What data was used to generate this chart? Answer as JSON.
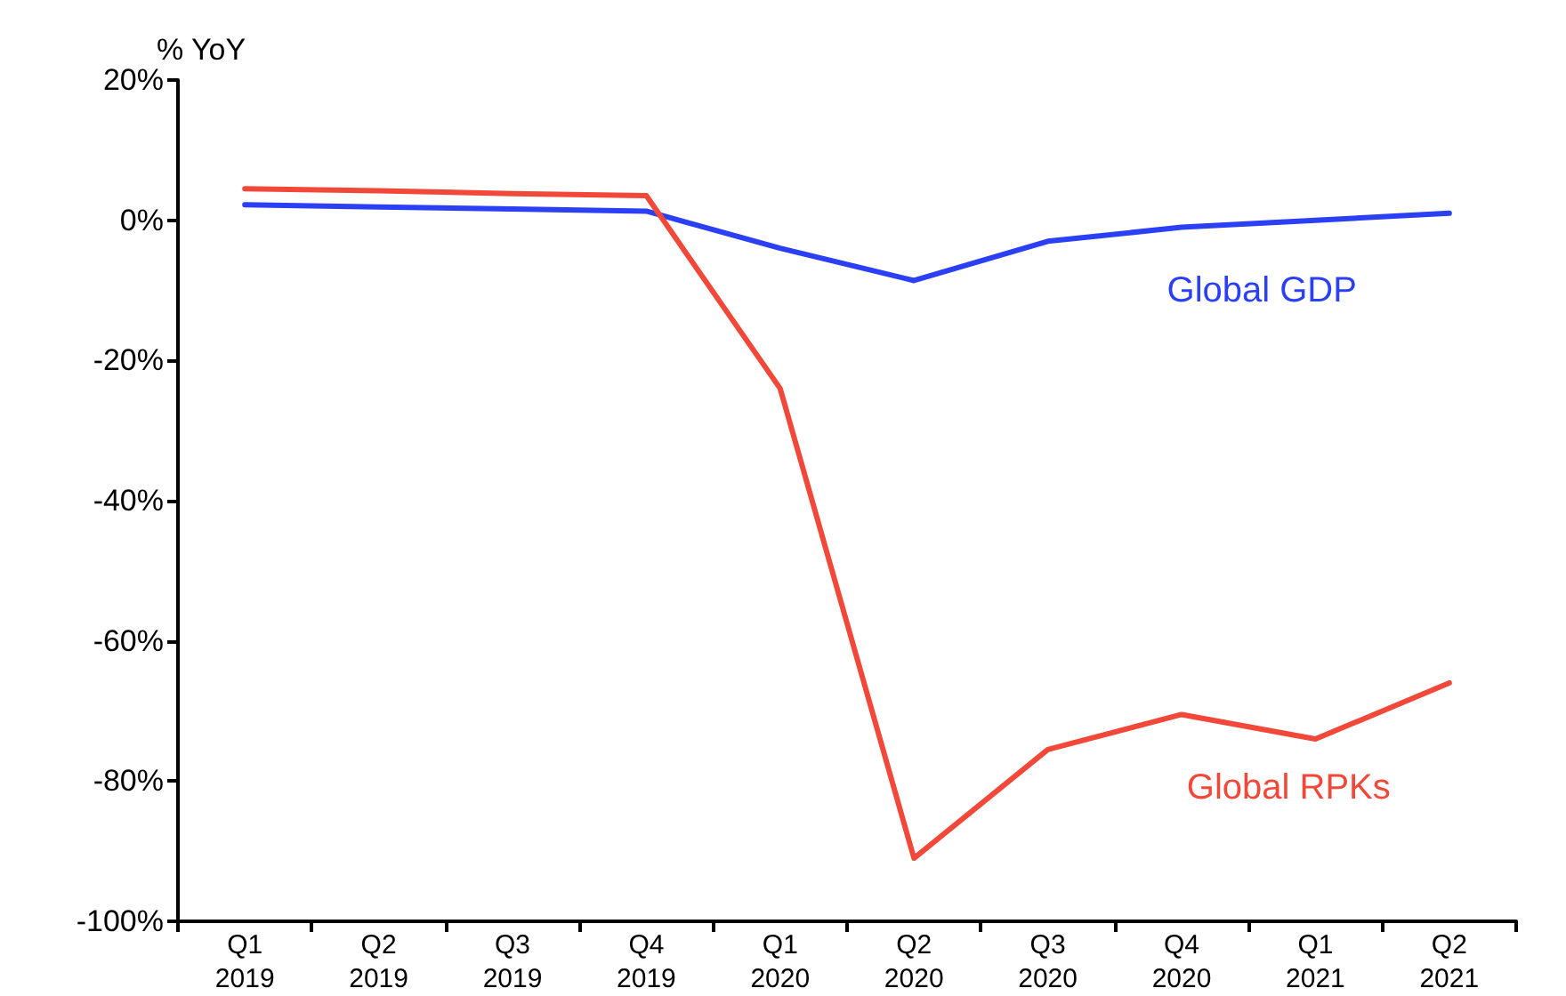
{
  "chart_data": {
    "type": "line",
    "ylabel": "% YoY",
    "categories": [
      "Q1\n2019",
      "Q2\n2019",
      "Q3\n2019",
      "Q4\n2019",
      "Q1\n2020",
      "Q2\n2020",
      "Q3\n2020",
      "Q4\n2020",
      "Q1\n2021",
      "Q2\n2021"
    ],
    "series": [
      {
        "name": "Global GDP",
        "color": "#2b3ff5",
        "values": [
          2.2,
          1.9,
          1.6,
          1.3,
          -4,
          -8.6,
          -3,
          -1,
          0,
          1
        ]
      },
      {
        "name": "Global RPKs",
        "color": "#f2483a",
        "values": [
          4.5,
          4.2,
          3.8,
          3.5,
          -24,
          -91,
          -75.5,
          -70.5,
          -74,
          -66
        ]
      }
    ],
    "ylim": [
      -100,
      20
    ],
    "yticks": [
      {
        "value": -100,
        "label": "-100%"
      },
      {
        "value": -80,
        "label": "-80%"
      },
      {
        "value": -60,
        "label": "-60%"
      },
      {
        "value": -40,
        "label": "-40%"
      },
      {
        "value": -20,
        "label": "-20%"
      },
      {
        "value": 0,
        "label": "0%"
      },
      {
        "value": 20,
        "label": "20%"
      }
    ],
    "grid": false,
    "legend": false,
    "marker": "none",
    "line_style": "solid"
  }
}
